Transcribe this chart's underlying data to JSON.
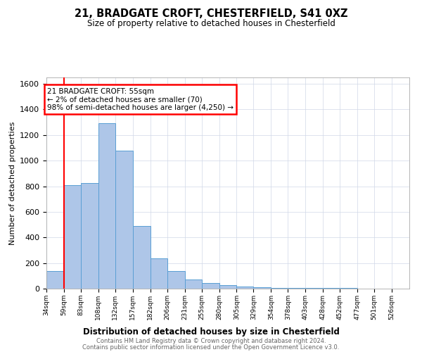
{
  "title": "21, BRADGATE CROFT, CHESTERFIELD, S41 0XZ",
  "subtitle": "Size of property relative to detached houses in Chesterfield",
  "xlabel": "Distribution of detached houses by size in Chesterfield",
  "ylabel": "Number of detached properties",
  "footer_line1": "Contains HM Land Registry data © Crown copyright and database right 2024.",
  "footer_line2": "Contains public sector information licensed under the Open Government Licence v3.0.",
  "annotation_title": "21 BRADGATE CROFT: 55sqm",
  "annotation_line1": "← 2% of detached houses are smaller (70)",
  "annotation_line2": "98% of semi-detached houses are larger (4,250) →",
  "bar_left_edges": [
    34,
    59,
    83,
    108,
    132,
    157,
    182,
    206,
    231,
    255,
    280,
    305,
    329,
    354,
    378,
    403,
    428,
    452,
    477,
    501,
    526
  ],
  "bar_heights": [
    140,
    810,
    825,
    1290,
    1080,
    490,
    235,
    135,
    70,
    42,
    25,
    14,
    9,
    7,
    6,
    5,
    4,
    3,
    2,
    1,
    0
  ],
  "bar_color": "#aec6e8",
  "bar_edge_color": "#5a9fd4",
  "red_line_x": 59,
  "ylim": [
    0,
    1650
  ],
  "yticks": [
    0,
    200,
    400,
    600,
    800,
    1000,
    1200,
    1400,
    1600
  ],
  "background_color": "#ffffff",
  "grid_color": "#d0d8e8"
}
